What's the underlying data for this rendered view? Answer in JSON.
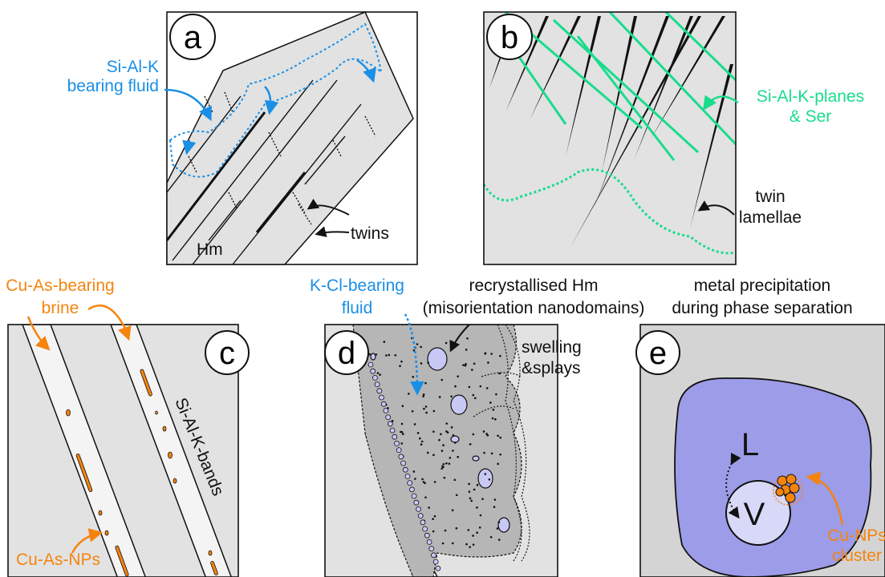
{
  "panels": [
    {
      "label": "a",
      "texts": [
        "Si-Al-K",
        "bearing fluid",
        "twins",
        "Hm"
      ]
    },
    {
      "label": "b",
      "texts": [
        "Si-Al-K-planes",
        "& Ser",
        "twin",
        "lamellae"
      ]
    },
    {
      "label": "c",
      "texts": [
        "Cu-As-bearing",
        "brine",
        "Si-Al-K-bands",
        "Cu-As-NPs"
      ]
    },
    {
      "label": "d",
      "texts": [
        "K-Cl-bearing",
        "fluid",
        "recrystallised Hm",
        "(misorientation nanodomains)",
        "swelling",
        "&splays"
      ]
    },
    {
      "label": "e",
      "texts": [
        "metal precipitation",
        "during phase separation",
        "L",
        "V",
        "Cu-NPs",
        "cluster"
      ]
    }
  ]
}
